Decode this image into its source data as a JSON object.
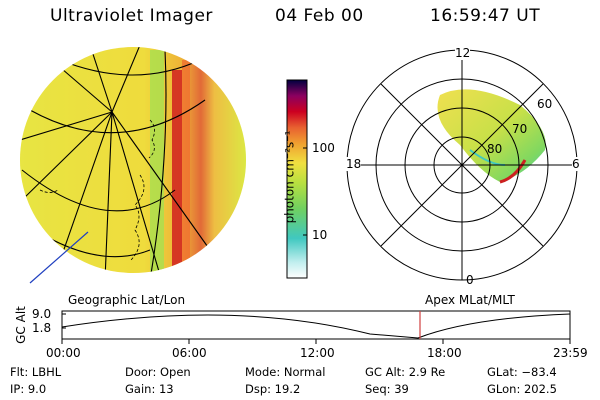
{
  "header": {
    "title": "Ultraviolet Imager",
    "date": "04 Feb 00",
    "time": "16:59:47 UT"
  },
  "colorbar": {
    "unit_label": "photon cm⁻²s⁻¹",
    "tick_labels": [
      "100",
      "10"
    ],
    "scale": "log",
    "colors": [
      "#000040",
      "#8b0060",
      "#cc0020",
      "#e83020",
      "#f07030",
      "#f0a030",
      "#f0d040",
      "#d8e840",
      "#a8e040",
      "#70d060",
      "#40c8c0",
      "#80e0e0",
      "#ffffff"
    ]
  },
  "polar_plot": {
    "mlt_labels": [
      "12",
      "18",
      "6",
      "0"
    ],
    "mlat_labels": [
      "60",
      "70",
      "80"
    ]
  },
  "panels": {
    "left_label": "Geographic Lat/Lon",
    "right_label": "Apex MLat/MLT"
  },
  "timeline": {
    "ylabel": "GC Alt",
    "y_ticks": [
      "9.0",
      "1.8"
    ],
    "x_ticks": [
      "00:00",
      "06:00",
      "12:00",
      "18:00",
      "23:59"
    ],
    "current_time_marker": "16:59",
    "marker_color": "#d04040"
  },
  "info": {
    "flt": "Flt: LBHL",
    "ip": "IP:  9.0",
    "door": "Door: Open",
    "gain": "Gain: 13",
    "mode": "Mode: Normal",
    "dsp": "Dsp:   19.2",
    "gcalt": "GC Alt: 2.9 Re",
    "seq": "Seq: 39",
    "glat": "GLat: −83.4",
    "glon": "GLon: 202.5"
  }
}
